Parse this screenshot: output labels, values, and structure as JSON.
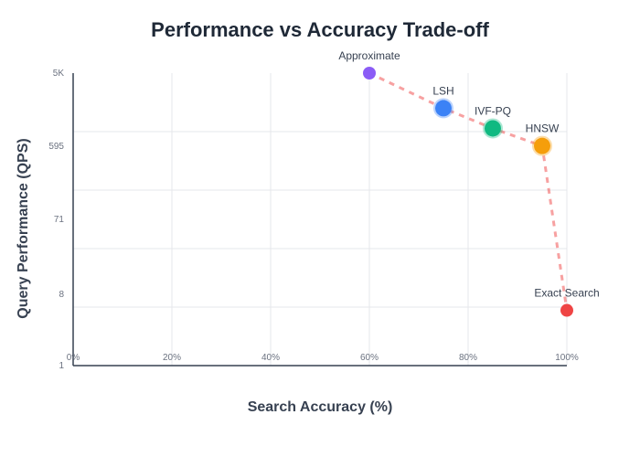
{
  "chart_data": {
    "type": "scatter",
    "title": "Performance vs Accuracy Trade-off",
    "xlabel": "Search Accuracy (%)",
    "ylabel": "Query Performance (QPS)",
    "xlim": [
      0,
      100
    ],
    "ylim": [
      1,
      5000
    ],
    "yscale": "log",
    "grid": true,
    "x_ticks": [
      {
        "value": 0,
        "label": "0%"
      },
      {
        "value": 20,
        "label": "20%"
      },
      {
        "value": 40,
        "label": "40%"
      },
      {
        "value": 60,
        "label": "60%"
      },
      {
        "value": 80,
        "label": "80%"
      },
      {
        "value": 100,
        "label": "100%"
      }
    ],
    "y_ticks": [
      {
        "value": 1,
        "label": "1"
      },
      {
        "value": 8,
        "label": "8"
      },
      {
        "value": 71,
        "label": "71"
      },
      {
        "value": 595,
        "label": "595"
      },
      {
        "value": 5000,
        "label": "5K"
      }
    ],
    "points": [
      {
        "name": "Approximate",
        "x": 60,
        "y": 5000,
        "color": "#8b5cf6"
      },
      {
        "name": "LSH",
        "x": 75,
        "y": 1800,
        "color": "#3b82f6"
      },
      {
        "name": "IVF-PQ",
        "x": 85,
        "y": 1000,
        "color": "#10b981"
      },
      {
        "name": "HNSW",
        "x": 95,
        "y": 600,
        "color": "#f59e0b"
      },
      {
        "name": "Exact Search",
        "x": 100,
        "y": 5,
        "color": "#ef4444"
      }
    ],
    "frontier_order": [
      "Approximate",
      "LSH",
      "IVF-PQ",
      "HNSW",
      "Exact Search"
    ],
    "frontier_color": "#ef4444"
  }
}
